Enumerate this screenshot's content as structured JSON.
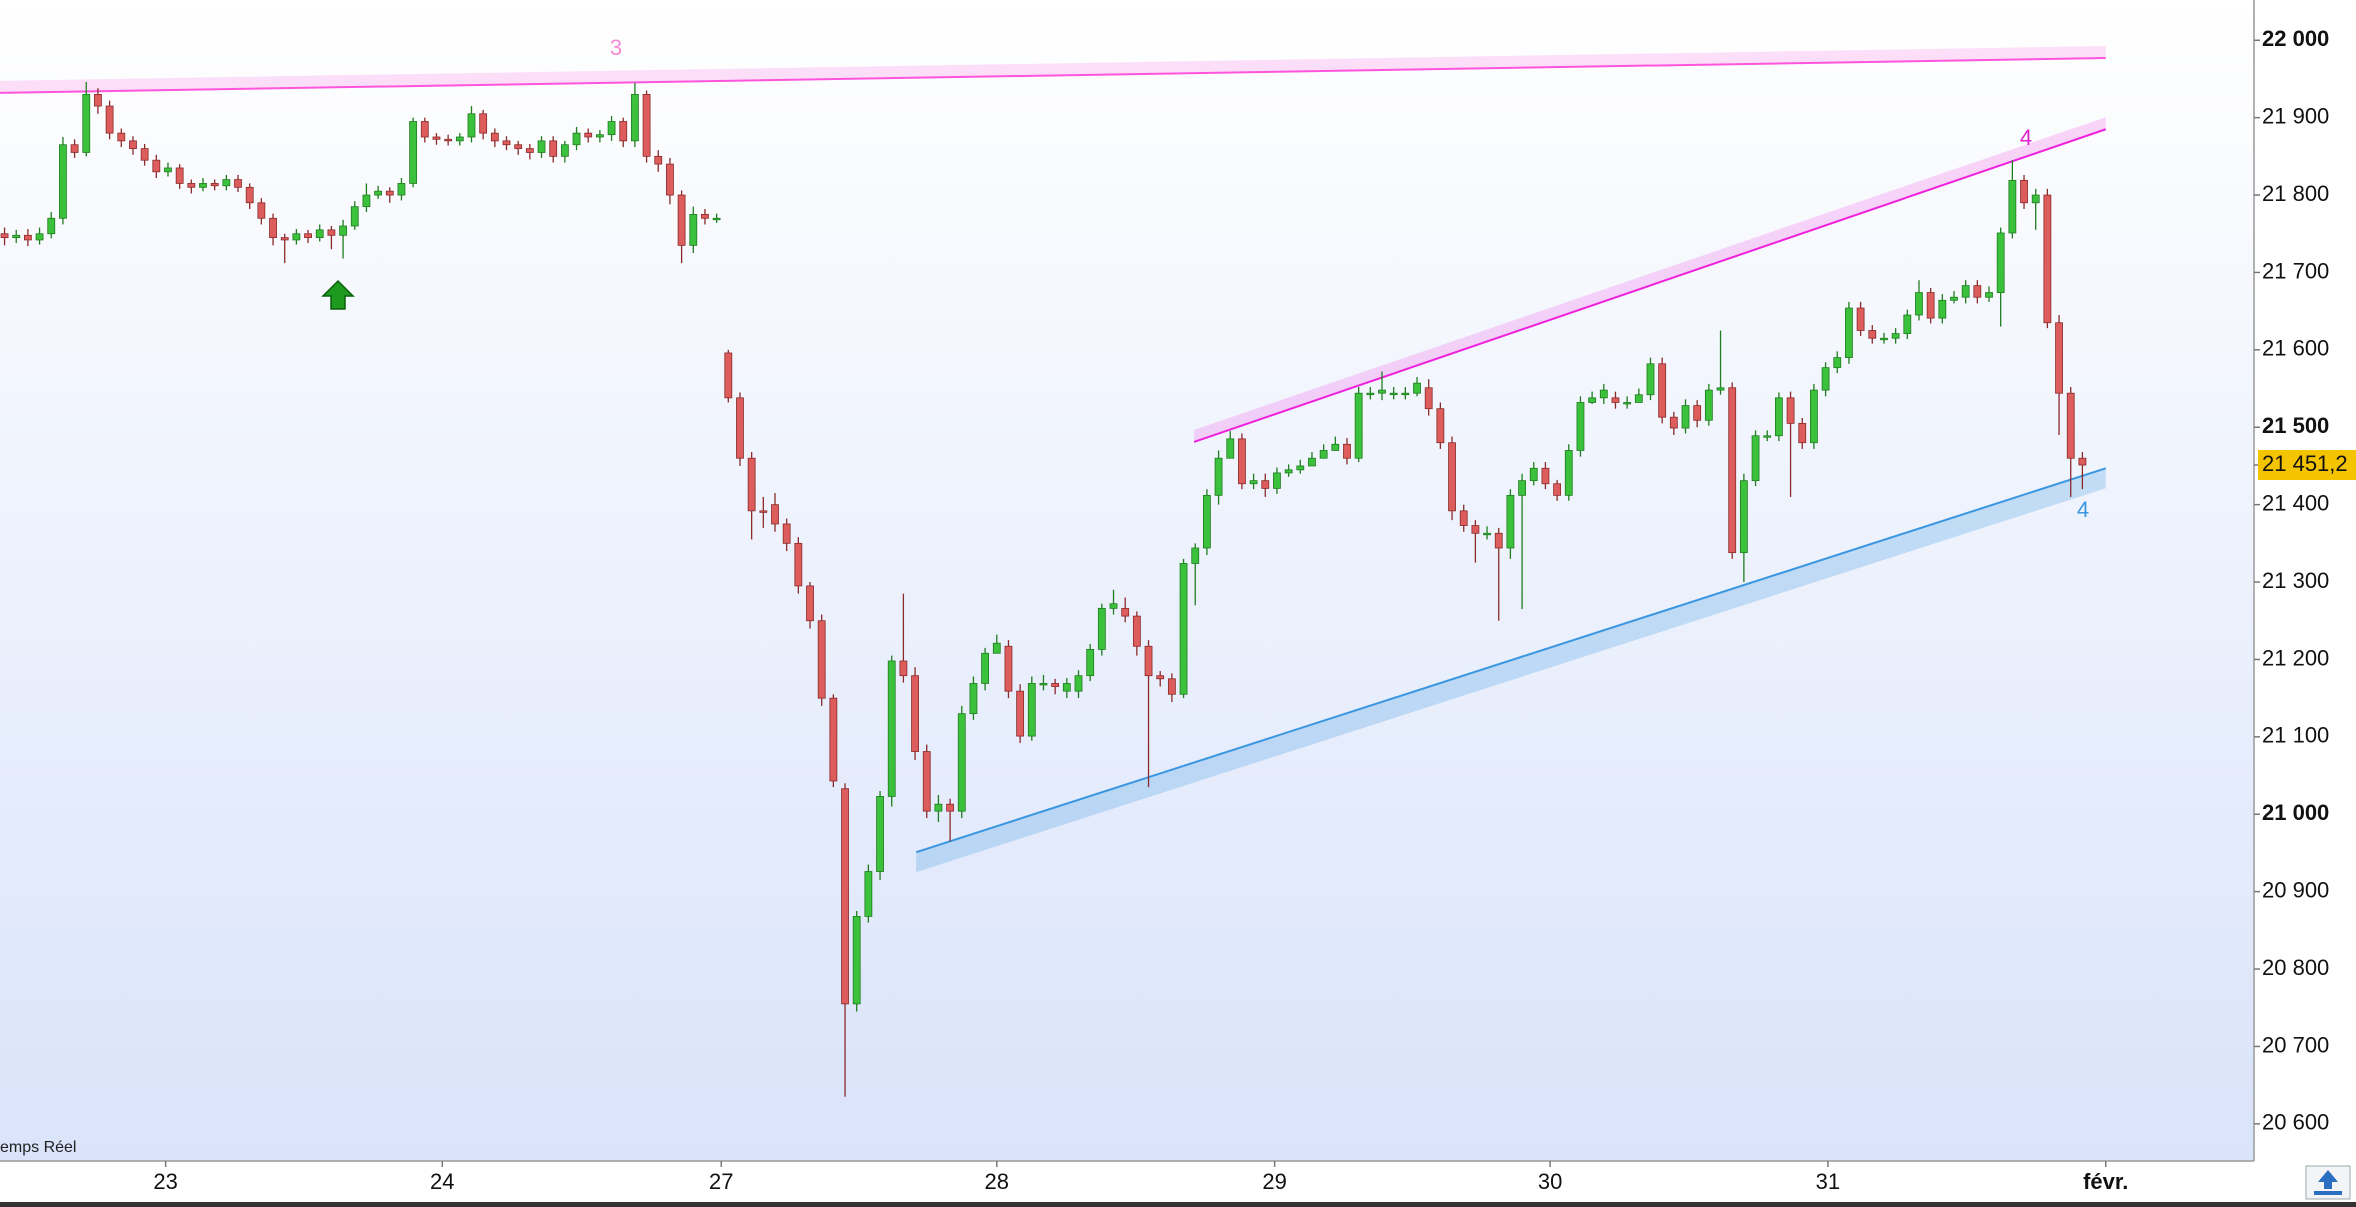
{
  "chart_data": {
    "type": "candlestick",
    "open": [
      21750,
      21745,
      21748,
      21742,
      21750,
      21770,
      21865,
      21855,
      21930,
      21915,
      21880,
      21870,
      21860,
      21845,
      21830,
      21835,
      21815,
      21810,
      21815,
      21812,
      21820,
      21810,
      21790,
      21770,
      21745,
      21742,
      21750,
      21745,
      21755,
      21748,
      21760,
      21785,
      21800,
      21805,
      21800,
      21815,
      21895,
      21875,
      21872,
      21870,
      21875,
      21905,
      21880,
      21870,
      21865,
      21860,
      21855,
      21870,
      21850,
      21865,
      21880,
      21875,
      21878,
      21895,
      21870,
      21930,
      21850,
      21840,
      21800,
      21735,
      21775,
      21770,
      21596,
      21538,
      21460,
      21392,
      21400,
      21375,
      21350,
      21295,
      21250,
      21150,
      21033,
      20755,
      20868,
      20926,
      21023,
      21198,
      21179,
      21081,
      21004,
      21013,
      21004,
      21130,
      21169,
      21208,
      21217,
      21159,
      21101,
      21169,
      21169,
      21159,
      21159,
      21179,
      21213,
      21266,
      21266,
      21256,
      21217,
      21179,
      21175,
      21155,
      21324,
      21344,
      21412,
      21460,
      21485,
      21427,
      21431,
      21421,
      21441,
      21445,
      21450,
      21460,
      21470,
      21478,
      21460,
      21544,
      21544,
      21544,
      21544,
      21544,
      21551,
      21524,
      21480,
      21392,
      21373,
      21363,
      21363,
      21344,
      21412,
      21431,
      21447,
      21427,
      21412,
      21470,
      21532,
      21538,
      21538,
      21532,
      21532,
      21542,
      21582,
      21513,
      21499,
      21528,
      21509,
      21548,
      21551,
      21338,
      21431,
      21489,
      21489,
      21538,
      21505,
      21480,
      21548,
      21577,
      21590,
      21654,
      21625,
      21615,
      21615,
      21621,
      21645,
      21674,
      21641,
      21664,
      21668,
      21683,
      21668,
      21674,
      21751,
      21819,
      21790,
      21800,
      21635,
      21544,
      21460
    ],
    "high": [
      21758,
      21755,
      21756,
      21758,
      21778,
      21875,
      21872,
      21946,
      21938,
      21922,
      21886,
      21876,
      21866,
      21852,
      21842,
      21840,
      21820,
      21822,
      21820,
      21826,
      21826,
      21815,
      21796,
      21776,
      21750,
      21756,
      21755,
      21762,
      21760,
      21768,
      21792,
      21815,
      21812,
      21810,
      21822,
      21900,
      21900,
      21880,
      21878,
      21880,
      21915,
      21910,
      21886,
      21876,
      21870,
      21866,
      21876,
      21876,
      21870,
      21888,
      21886,
      21884,
      21902,
      21900,
      21945,
      21935,
      21858,
      21848,
      21806,
      21785,
      21782,
      21776,
      21600,
      21545,
      21468,
      21410,
      21415,
      21382,
      21358,
      21300,
      21258,
      21155,
      21040,
      20875,
      20935,
      21030,
      21205,
      21285,
      21190,
      21090,
      21025,
      21020,
      21140,
      21178,
      21215,
      21232,
      21225,
      21168,
      21178,
      21180,
      21175,
      21176,
      21186,
      21220,
      21272,
      21290,
      21280,
      21262,
      21225,
      21185,
      21182,
      21330,
      21350,
      21420,
      21470,
      21495,
      21492,
      21440,
      21440,
      21448,
      21452,
      21458,
      21468,
      21478,
      21488,
      21486,
      21552,
      21552,
      21572,
      21552,
      21552,
      21565,
      21562,
      21532,
      21488,
      21400,
      21380,
      21372,
      21370,
      21420,
      21440,
      21455,
      21455,
      21432,
      21478,
      21540,
      21546,
      21556,
      21546,
      21540,
      21550,
      21590,
      21590,
      21520,
      21536,
      21535,
      21556,
      21625,
      21558,
      21440,
      21496,
      21496,
      21545,
      21546,
      21512,
      21556,
      21584,
      21598,
      21662,
      21662,
      21632,
      21622,
      21628,
      21652,
      21690,
      21680,
      21672,
      21676,
      21690,
      21690,
      21682,
      21758,
      21845,
      21826,
      21808,
      21808,
      21645,
      21552,
      21468
    ],
    "low": [
      21735,
      21738,
      21734,
      21736,
      21744,
      21762,
      21848,
      21850,
      21905,
      21872,
      21862,
      21852,
      21838,
      21822,
      21824,
      21808,
      21802,
      21805,
      21806,
      21806,
      21804,
      21782,
      21762,
      21735,
      21712,
      21736,
      21738,
      21740,
      21730,
      21718,
      21755,
      21778,
      21795,
      21790,
      21793,
      21810,
      21868,
      21865,
      21864,
      21864,
      21868,
      21872,
      21862,
      21858,
      21852,
      21846,
      21848,
      21842,
      21842,
      21858,
      21868,
      21868,
      21870,
      21862,
      21862,
      21842,
      21830,
      21788,
      21712,
      21725,
      21762,
      21764,
      21532,
      21450,
      21355,
      21370,
      21365,
      21340,
      21285,
      21240,
      21140,
      21035,
      20635,
      20745,
      20860,
      20915,
      21010,
      21170,
      21070,
      20995,
      20990,
      20965,
      20995,
      21122,
      21160,
      21210,
      21150,
      21092,
      21095,
      21160,
      21155,
      21150,
      21150,
      21172,
      21205,
      21258,
      21248,
      21205,
      21035,
      21165,
      21145,
      21150,
      21270,
      21335,
      21400,
      21475,
      21420,
      21420,
      21410,
      21414,
      21436,
      21440,
      21452,
      21462,
      21470,
      21452,
      21455,
      21536,
      21535,
      21536,
      21536,
      21540,
      21515,
      21472,
      21380,
      21365,
      21325,
      21355,
      21250,
      21330,
      21265,
      21425,
      21420,
      21405,
      21405,
      21462,
      21530,
      21530,
      21524,
      21524,
      21534,
      21535,
      21505,
      21490,
      21492,
      21500,
      21502,
      21542,
      21330,
      21300,
      21424,
      21482,
      21482,
      21410,
      21472,
      21472,
      21540,
      21570,
      21582,
      21618,
      21608,
      21608,
      21608,
      21614,
      21638,
      21634,
      21634,
      21660,
      21660,
      21660,
      21662,
      21630,
      21744,
      21782,
      21755,
      21628,
      21490,
      21410,
      21420
    ],
    "close": [
      21745,
      21748,
      21742,
      21750,
      21770,
      21865,
      21855,
      21930,
      21915,
      21880,
      21870,
      21860,
      21845,
      21830,
      21835,
      21815,
      21810,
      21815,
      21812,
      21820,
      21810,
      21790,
      21770,
      21745,
      21742,
      21750,
      21745,
      21755,
      21748,
      21760,
      21785,
      21800,
      21805,
      21800,
      21815,
      21895,
      21875,
      21872,
      21870,
      21875,
      21905,
      21880,
      21870,
      21865,
      21860,
      21855,
      21870,
      21850,
      21865,
      21880,
      21875,
      21878,
      21895,
      21870,
      21930,
      21850,
      21840,
      21800,
      21735,
      21775,
      21770,
      21770,
      21538,
      21460,
      21392,
      21390,
      21375,
      21350,
      21295,
      21250,
      21150,
      21043,
      20755,
      20868,
      20926,
      21023,
      21198,
      21179,
      21081,
      21004,
      21013,
      21004,
      21130,
      21169,
      21208,
      21221,
      21159,
      21101,
      21169,
      21169,
      21165,
      21169,
      21179,
      21213,
      21266,
      21272,
      21256,
      21217,
      21179,
      21175,
      21155,
      21324,
      21344,
      21412,
      21460,
      21485,
      21427,
      21431,
      21421,
      21441,
      21445,
      21450,
      21460,
      21470,
      21478,
      21460,
      21544,
      21544,
      21548,
      21544,
      21544,
      21557,
      21524,
      21480,
      21392,
      21373,
      21363,
      21363,
      21344,
      21412,
      21431,
      21447,
      21427,
      21412,
      21470,
      21532,
      21538,
      21548,
      21532,
      21532,
      21542,
      21582,
      21513,
      21499,
      21528,
      21509,
      21548,
      21551,
      21338,
      21431,
      21489,
      21489,
      21538,
      21505,
      21480,
      21548,
      21577,
      21590,
      21654,
      21625,
      21615,
      21615,
      21621,
      21645,
      21674,
      21641,
      21664,
      21668,
      21683,
      21668,
      21674,
      21751,
      21819,
      21790,
      21800,
      21635,
      21544,
      21460,
      21451.2
    ],
    "up_color": "#3cc13c",
    "down_color": "#dd5c5c",
    "xlim": [
      -0.39,
      192.7
    ],
    "xticks": [
      {
        "value": 13.8,
        "label": "23"
      },
      {
        "value": 37.5,
        "label": "24"
      },
      {
        "value": 61.4,
        "label": "27"
      },
      {
        "value": 85,
        "label": "28"
      },
      {
        "value": 108.8,
        "label": "29"
      },
      {
        "value": 132.4,
        "label": "30"
      },
      {
        "value": 156.2,
        "label": "31"
      },
      {
        "value": 180,
        "label": "févr."
      }
    ],
    "ylim": [
      20552,
      22052
    ],
    "yticks": [
      {
        "value": 20600,
        "label": "20 600"
      },
      {
        "value": 20700,
        "label": "20 700"
      },
      {
        "value": 20800,
        "label": "20 800"
      },
      {
        "value": 20900,
        "label": "20 900"
      },
      {
        "value": 21000,
        "label": "21 000"
      },
      {
        "value": 21100,
        "label": "21 100"
      },
      {
        "value": 21200,
        "label": "21 200"
      },
      {
        "value": 21300,
        "label": "21 300"
      },
      {
        "value": 21400,
        "label": "21 400"
      },
      {
        "value": 21500,
        "label": "21 500"
      },
      {
        "value": 21600,
        "label": "21 600"
      },
      {
        "value": 21700,
        "label": "21 700"
      },
      {
        "value": 21800,
        "label": "21 800"
      },
      {
        "value": 21900,
        "label": "21 900"
      },
      {
        "value": 22000,
        "label": "22 000"
      }
    ],
    "last_price": {
      "value": 21451.2,
      "label": "21 451,2"
    },
    "trendlines": [
      {
        "x": [
          -0.39,
          180
        ],
        "y": [
          21932,
          21977
        ],
        "color": "#ff55dd"
      },
      {
        "x": [
          101.9,
          180
        ],
        "y": [
          21481,
          21885
        ],
        "color": "#ee22dd"
      },
      {
        "x": [
          78.1,
          180
        ],
        "y": [
          20951,
          21447
        ],
        "color": "#3a96e0"
      }
    ],
    "annotations": [
      {
        "text": "3",
        "color": "#f58ad2"
      },
      {
        "text": "4",
        "color": "#e020d0"
      },
      {
        "text": "4",
        "color": "#3a96e0"
      }
    ],
    "status": "emps Réel"
  }
}
